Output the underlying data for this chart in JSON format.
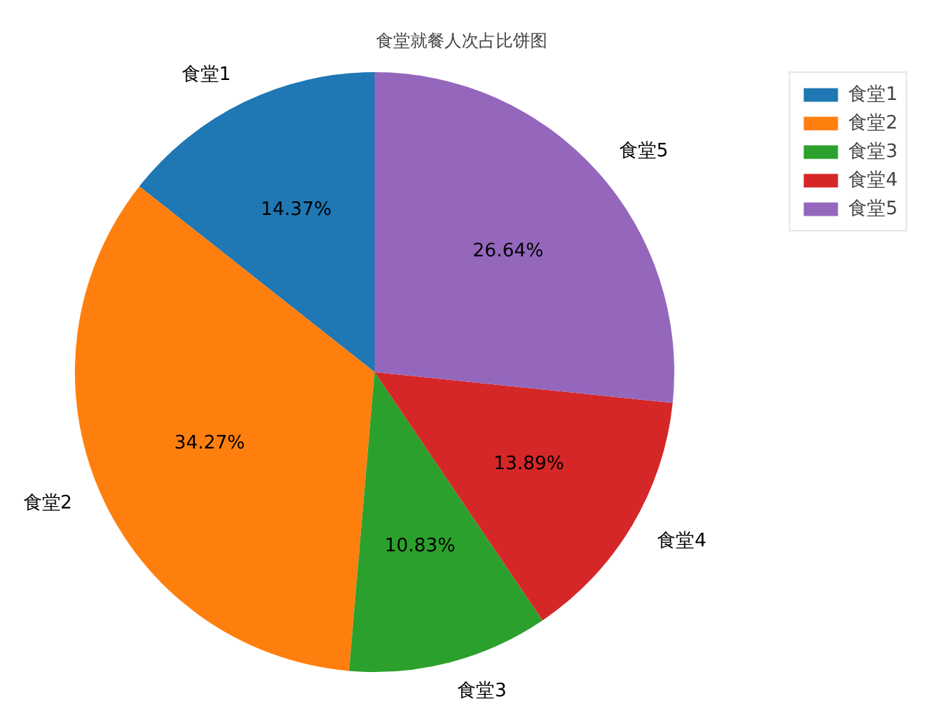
{
  "chart_data": {
    "type": "pie",
    "title": "食堂就餐人次占比饼图",
    "categories": [
      "食堂1",
      "食堂2",
      "食堂3",
      "食堂4",
      "食堂5"
    ],
    "values": [
      14.37,
      34.27,
      10.83,
      13.89,
      26.64
    ],
    "colors": [
      "#1f77b4",
      "#ff7f0e",
      "#2ca02c",
      "#d62728",
      "#9467bd"
    ],
    "value_labels": [
      "14.37%",
      "34.27%",
      "10.83%",
      "13.89%",
      "26.64%"
    ],
    "legend": "top right"
  }
}
